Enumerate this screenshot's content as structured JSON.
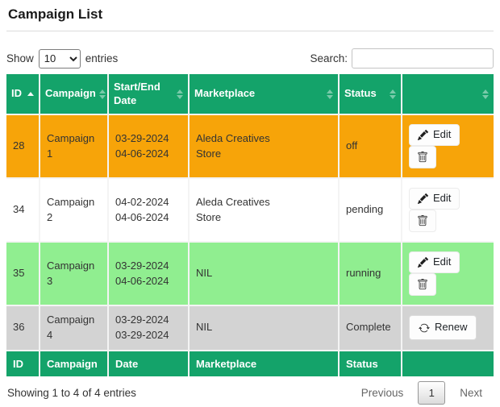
{
  "page": {
    "title": "Campaign List"
  },
  "controls": {
    "show_label": "Show",
    "entries_label": "entries",
    "page_length": "10",
    "search_label": "Search:",
    "search_value": ""
  },
  "table": {
    "headers": [
      {
        "label": "ID",
        "sort": "asc"
      },
      {
        "label": "Campaign",
        "sort": "both"
      },
      {
        "label": "Start/End Date",
        "sort": "both"
      },
      {
        "label": "Marketplace",
        "sort": "both"
      },
      {
        "label": "Status",
        "sort": "both"
      },
      {
        "label": "",
        "sort": "both"
      }
    ],
    "action_labels": {
      "edit": "Edit",
      "renew": "Renew"
    },
    "rows": [
      {
        "id": "28",
        "campaign": "Campaign 1",
        "dates": [
          "03-29-2024",
          "04-06-2024"
        ],
        "marketplace": [
          "Aleda Creatives",
          "Store"
        ],
        "status": "off",
        "bg": "#f7a409",
        "actions": [
          "edit",
          "delete"
        ]
      },
      {
        "id": "34",
        "campaign": "Campaign 2",
        "dates": [
          "04-02-2024",
          "04-06-2024"
        ],
        "marketplace": [
          "Aleda Creatives",
          "Store"
        ],
        "status": "pending",
        "bg": "#ffffff",
        "actions": [
          "edit",
          "delete"
        ]
      },
      {
        "id": "35",
        "campaign": "Campaign 3",
        "dates": [
          "03-29-2024",
          "04-06-2024"
        ],
        "marketplace": [
          "NIL"
        ],
        "status": "running",
        "bg": "#90ee90",
        "actions": [
          "edit",
          "delete"
        ]
      },
      {
        "id": "36",
        "campaign": "Campaign 4",
        "dates": [
          "03-29-2024",
          "03-29-2024"
        ],
        "marketplace": [
          "NIL"
        ],
        "status": "Complete",
        "bg": "#d3d3d3",
        "actions": [
          "renew"
        ]
      }
    ],
    "footer_headers": [
      "ID",
      "Campaign",
      "Date",
      "Marketplace",
      "Status",
      ""
    ]
  },
  "footer": {
    "info": "Showing 1 to 4 of 4 entries",
    "pagination": {
      "previous": "Previous",
      "current_page": "1",
      "next": "Next"
    }
  },
  "colors": {
    "header_green": "#14a36a",
    "row_orange": "#f7a409",
    "row_green": "#90ee90",
    "row_gray": "#d3d3d3",
    "text": "#333333"
  }
}
